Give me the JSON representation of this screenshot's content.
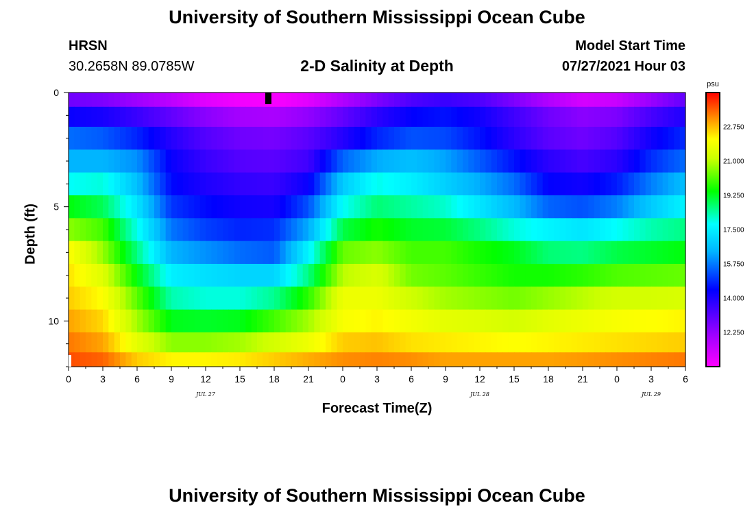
{
  "header": {
    "main_title": "University of Southern Mississippi Ocean Cube",
    "station_name": "HRSN",
    "station_coords": "30.2658N  89.0785W",
    "chart_title": "2-D Salinity at Depth",
    "model_start_label": "Model Start Time",
    "model_start_value": "07/27/2021 Hour 03"
  },
  "footer": {
    "title": "University of Southern Mississippi Ocean Cube"
  },
  "chart_data": {
    "type": "heatmap",
    "title": "2-D Salinity at Depth",
    "xlabel": "Forecast Time(Z)",
    "ylabel": "Depth (ft)",
    "x_tick_labels": [
      "0",
      "3",
      "6",
      "9",
      "12",
      "15",
      "18",
      "21",
      "0",
      "3",
      "6",
      "9",
      "12",
      "15",
      "18",
      "21",
      "0",
      "3",
      "6"
    ],
    "x_hours": [
      0,
      3,
      6,
      9,
      12,
      15,
      18,
      21,
      24,
      27,
      30,
      33,
      36,
      39,
      42,
      45,
      48,
      51,
      54
    ],
    "date_labels": [
      {
        "text": "JUL 27",
        "hour": 12
      },
      {
        "text": "JUL 28",
        "hour": 36
      },
      {
        "text": "JUL 29",
        "hour": 51
      }
    ],
    "xlim": [
      0,
      54
    ],
    "y_tick_labels": [
      "0",
      "5",
      "10"
    ],
    "y_ticks": [
      0,
      5,
      10
    ],
    "ylim": [
      0,
      12
    ],
    "colorbar": {
      "unit": "psu",
      "tick_labels": [
        "22.750",
        "21.000",
        "19.250",
        "17.500",
        "15.750",
        "14.000",
        "12.250"
      ],
      "tick_values": [
        22.75,
        21.0,
        19.25,
        17.5,
        15.75,
        14.0,
        12.25
      ],
      "range": [
        10.5,
        24.5
      ]
    },
    "time_hours": [
      0,
      3,
      6,
      9,
      12,
      15,
      18,
      21,
      24,
      27,
      30,
      33,
      36,
      39,
      42,
      45,
      48,
      51,
      54
    ],
    "depth_layers_ft": [
      0.25,
      1,
      2,
      3,
      4,
      5,
      6,
      7,
      8,
      9,
      10,
      11,
      11.75
    ],
    "salinity": [
      [
        12.8,
        12.6,
        12.1,
        11.6,
        11.0,
        10.7,
        10.6,
        11.0,
        11.8,
        12.6,
        13.3,
        13.6,
        13.3,
        12.6,
        11.8,
        11.2,
        11.4,
        12.2,
        13.0
      ],
      [
        14.3,
        14.1,
        13.6,
        13.0,
        12.4,
        12.0,
        11.9,
        12.3,
        13.0,
        13.8,
        14.4,
        14.6,
        14.2,
        13.5,
        12.8,
        12.4,
        12.6,
        13.4,
        14.0
      ],
      [
        15.6,
        15.4,
        14.8,
        13.9,
        13.2,
        12.8,
        12.7,
        13.1,
        13.9,
        14.8,
        15.3,
        15.2,
        14.6,
        13.8,
        13.1,
        12.8,
        13.2,
        14.2,
        14.9
      ],
      [
        16.4,
        16.4,
        16.0,
        14.3,
        13.6,
        13.2,
        13.1,
        13.5,
        15.5,
        16.3,
        16.6,
        16.2,
        15.4,
        14.6,
        13.8,
        13.4,
        13.8,
        14.9,
        15.6
      ],
      [
        17.8,
        18.0,
        16.6,
        14.5,
        14.0,
        13.7,
        13.6,
        14.3,
        16.8,
        17.9,
        17.5,
        16.9,
        16.3,
        15.6,
        14.4,
        14.2,
        14.7,
        15.8,
        16.6
      ],
      [
        19.4,
        18.9,
        17.3,
        15.0,
        14.5,
        14.2,
        14.1,
        15.3,
        17.8,
        18.7,
        18.4,
        18.1,
        17.3,
        16.5,
        15.5,
        15.3,
        15.8,
        16.8,
        17.6
      ],
      [
        20.6,
        20.0,
        17.9,
        15.7,
        15.1,
        14.8,
        14.9,
        16.3,
        19.0,
        19.6,
        19.2,
        19.1,
        18.6,
        18.0,
        17.6,
        17.3,
        17.8,
        18.3,
        18.6
      ],
      [
        22.1,
        20.7,
        18.6,
        16.4,
        16.0,
        15.6,
        15.4,
        17.6,
        20.3,
        20.6,
        20.0,
        20.0,
        19.6,
        19.3,
        18.7,
        18.6,
        19.0,
        19.2,
        19.4
      ],
      [
        22.4,
        21.5,
        19.4,
        17.5,
        17.2,
        17.0,
        17.0,
        18.6,
        21.0,
        21.4,
        20.4,
        20.2,
        19.9,
        19.6,
        19.6,
        19.8,
        20.1,
        20.2,
        20.3
      ],
      [
        22.6,
        22.1,
        20.2,
        18.3,
        18.0,
        18.0,
        18.5,
        19.8,
        21.8,
        21.8,
        21.2,
        20.8,
        20.6,
        20.4,
        20.7,
        21.0,
        21.3,
        21.3,
        21.4
      ],
      [
        23.0,
        22.5,
        20.8,
        19.3,
        19.2,
        19.3,
        20.0,
        20.8,
        22.0,
        22.2,
        21.9,
        21.6,
        21.5,
        21.3,
        21.6,
        21.8,
        22.0,
        22.1,
        22.2
      ],
      [
        23.4,
        23.0,
        21.6,
        20.6,
        20.6,
        20.8,
        21.3,
        21.8,
        22.6,
        22.7,
        22.4,
        22.3,
        22.2,
        22.1,
        22.2,
        22.3,
        22.4,
        22.5,
        22.6
      ],
      [
        23.8,
        23.6,
        22.6,
        22.2,
        22.2,
        22.3,
        22.6,
        22.9,
        23.2,
        23.3,
        23.2,
        23.0,
        23.0,
        23.0,
        23.0,
        23.1,
        23.2,
        23.3,
        23.4
      ]
    ]
  }
}
